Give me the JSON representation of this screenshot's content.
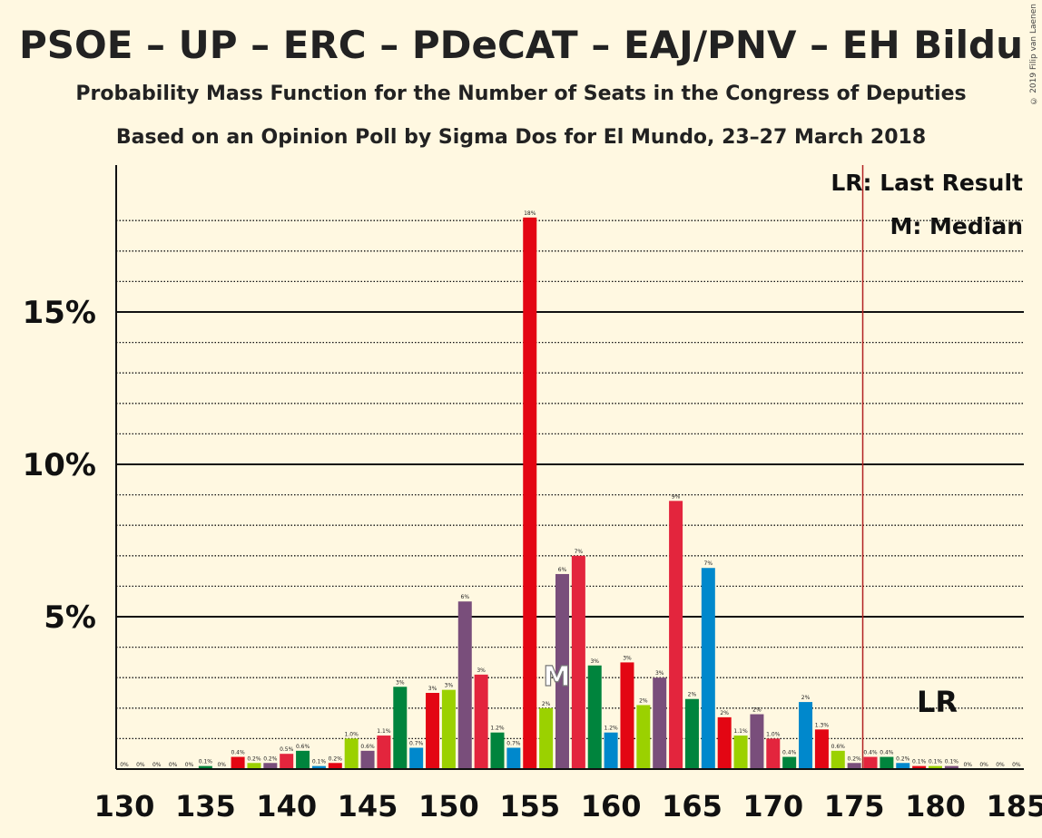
{
  "title": "PSOE – UP – ERC – PDeCAT – EAJ/PNV – EH Bildu",
  "subtitle": "Probability Mass Function for the Number of Seats in the Congress of Deputies",
  "subtitle2": "Based on an Opinion Poll by Sigma Dos for El Mundo, 23–27 March 2018",
  "copyright": "© 2019 Filip van Laenen",
  "chart_data": {
    "type": "bar",
    "x": [
      130,
      131,
      132,
      133,
      134,
      135,
      136,
      137,
      138,
      139,
      140,
      141,
      142,
      143,
      144,
      145,
      146,
      147,
      148,
      149,
      150,
      151,
      152,
      153,
      154,
      155,
      156,
      157,
      158,
      159,
      160,
      161,
      162,
      163,
      164,
      165,
      166,
      167,
      168,
      169,
      170,
      171,
      172,
      173,
      174,
      175,
      176,
      177,
      178,
      179,
      180,
      181,
      182,
      183,
      184,
      185
    ],
    "values": [
      0,
      0,
      0,
      0,
      0,
      0.1,
      0,
      0.4,
      0.2,
      0.2,
      0.5,
      0.6,
      0.1,
      0.2,
      1.0,
      0.6,
      1.1,
      2.7,
      0.7,
      2.5,
      2.6,
      5.5,
      3.1,
      1.2,
      0.7,
      18.1,
      2.0,
      6.4,
      7.0,
      3.4,
      1.2,
      3.5,
      2.1,
      3.0,
      8.8,
      2.3,
      6.6,
      1.7,
      1.1,
      1.8,
      1.0,
      0.4,
      2.2,
      1.3,
      0.6,
      0.2,
      0.4,
      0.4,
      0.2,
      0.1,
      0.1,
      0.1,
      0,
      0,
      0,
      0
    ],
    "labels": [
      "0%",
      "0%",
      "0%",
      "0%",
      "0%",
      "0.1%",
      "0%",
      "0.4%",
      "0.2%",
      "0.2%",
      "0.5%",
      "0.6%",
      "0.1%",
      "0.2%",
      "1.0%",
      "0.6%",
      "1.1%",
      "3%",
      "0.7%",
      "3%",
      "3%",
      "6%",
      "3%",
      "1.2%",
      "0.7%",
      "18%",
      "2%",
      "6%",
      "7%",
      "3%",
      "1.2%",
      "3%",
      "2%",
      "3%",
      "9%",
      "2%",
      "7%",
      "2%",
      "1.1%",
      "2%",
      "1.0%",
      "0.4%",
      "2%",
      "1.3%",
      "0.6%",
      "0.2%",
      "0.4%",
      "0.4%",
      "0.2%",
      "0.1%",
      "0.1%",
      "0.1%",
      "0%",
      "0%",
      "0%",
      "0%"
    ],
    "colors": [
      "#0088CC",
      "#E30613",
      "#9BD100",
      "#794E7B",
      "#E3253D",
      "#00843D"
    ],
    "xticks": [
      130,
      135,
      140,
      145,
      150,
      155,
      160,
      165,
      170,
      175,
      180,
      185
    ],
    "yticks": [
      {
        "v": 5,
        "label": "5%"
      },
      {
        "v": 10,
        "label": "10%"
      },
      {
        "v": 15,
        "label": "15%"
      }
    ],
    "ylim": [
      0,
      19.5
    ],
    "xlim": [
      130,
      185
    ],
    "median": 157,
    "median_marker": "M",
    "last_result": 176,
    "last_result_marker": "LR",
    "legend": [
      "LR: Last Result",
      "M: Median"
    ]
  }
}
